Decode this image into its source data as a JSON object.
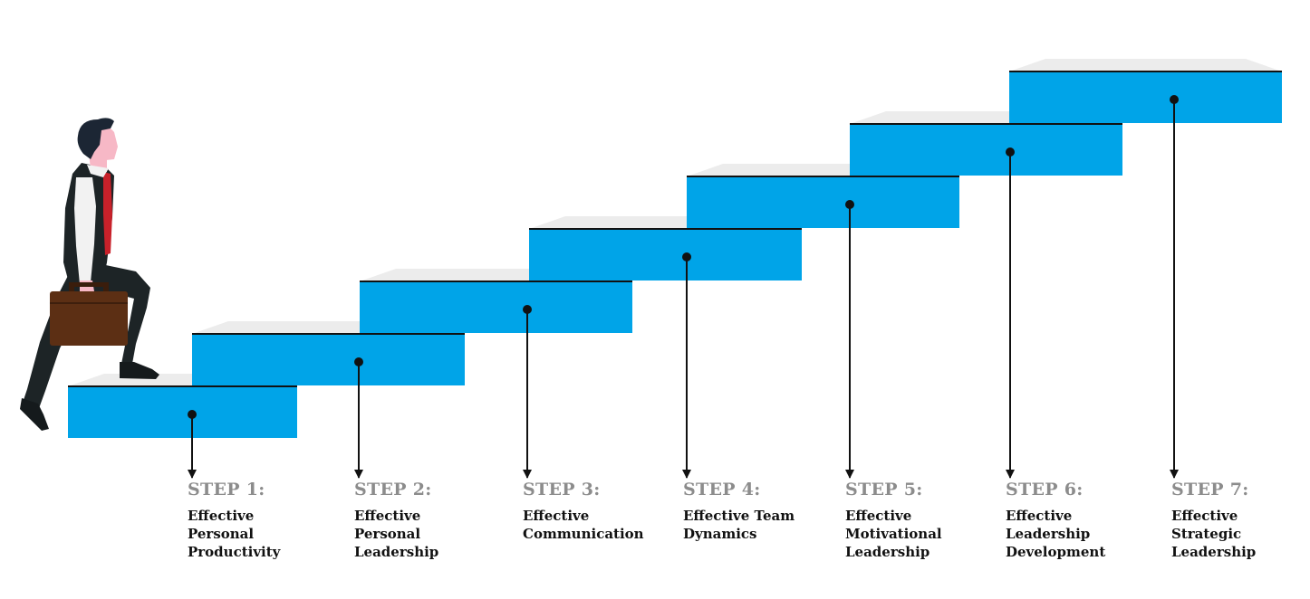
{
  "colors": {
    "step_face": "#00a4e8",
    "step_top": "#ececec",
    "step_edge": "#111111",
    "step_number_text": "#8c8c8c",
    "step_title_text": "#111111",
    "connector": "#111111"
  },
  "figure": {
    "icon": "businessman-climbing-stairs-icon",
    "suit_color": "#1d2426",
    "shirt_color": "#f2f2f2",
    "tie_color": "#c8212a",
    "skin_color": "#f7b8c6",
    "hair_color": "#1c2634",
    "briefcase_color": "#5c2f14"
  },
  "steps": [
    {
      "number": "STEP 1:",
      "title_lines": [
        "Effective",
        "Personal",
        "Productivity"
      ]
    },
    {
      "number": "STEP 2:",
      "title_lines": [
        "Effective",
        "Personal",
        "Leadership"
      ]
    },
    {
      "number": "STEP 3:",
      "title_lines": [
        "Effective",
        "Communication"
      ]
    },
    {
      "number": "STEP 4:",
      "title_lines": [
        "Effective Team",
        "Dynamics"
      ]
    },
    {
      "number": "STEP 5:",
      "title_lines": [
        "Effective",
        "Motivational",
        "Leadership"
      ]
    },
    {
      "number": "STEP 6:",
      "title_lines": [
        "Effective",
        "Leadership",
        "Development"
      ]
    },
    {
      "number": "STEP 7:",
      "title_lines": [
        "Effective",
        "Strategic",
        "Leadership"
      ]
    }
  ]
}
